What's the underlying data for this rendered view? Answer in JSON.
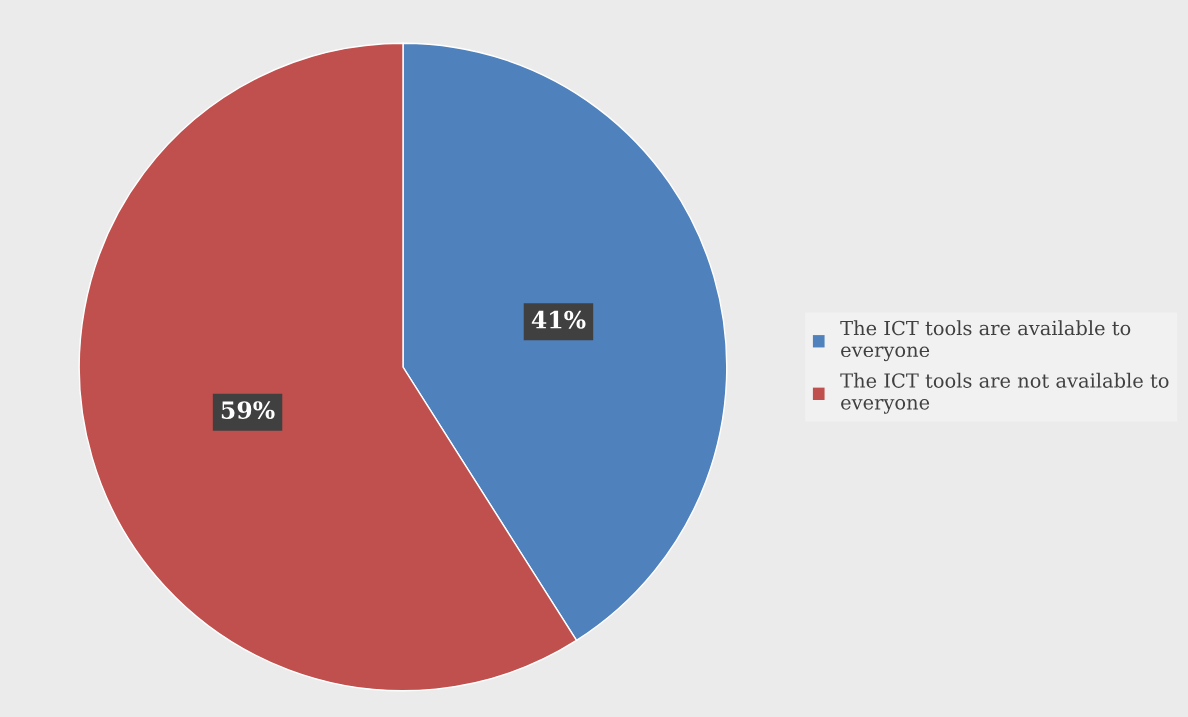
{
  "chart_data": {
    "type": "pie",
    "categories": [
      "The ICT tools are available to everyone",
      "The ICT tools are not available to everyone"
    ],
    "values": [
      41,
      59
    ],
    "colors": [
      "#4f81bd",
      "#c0504d"
    ],
    "value_labels": [
      "41%",
      "59%"
    ],
    "legend": "right"
  }
}
